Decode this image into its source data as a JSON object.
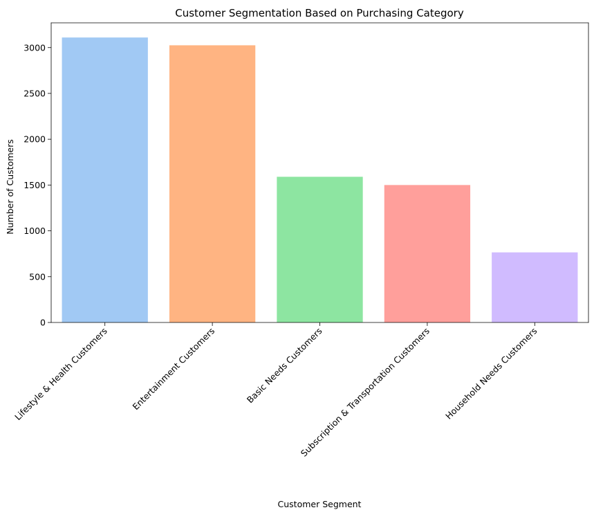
{
  "chart_data": {
    "type": "bar",
    "title": "Customer Segmentation Based on Purchasing Category",
    "xlabel": "Customer Segment",
    "ylabel": "Number of Customers",
    "categories": [
      "Lifestyle & Health Customers",
      "Entertainment Customers",
      "Basic Needs Customers",
      "Subscription & Transportation Customers",
      "Household Needs Customers"
    ],
    "values": [
      3110,
      3025,
      1590,
      1500,
      765
    ],
    "colors": [
      "#a1c9f4",
      "#ffb482",
      "#8de5a1",
      "#ff9f9b",
      "#d0bbff"
    ],
    "ylim": [
      0,
      3270
    ],
    "yticks": [
      0,
      500,
      1000,
      1500,
      2000,
      2500,
      3000
    ],
    "xtick_rotation": 45,
    "grid": false,
    "legend": "none"
  }
}
